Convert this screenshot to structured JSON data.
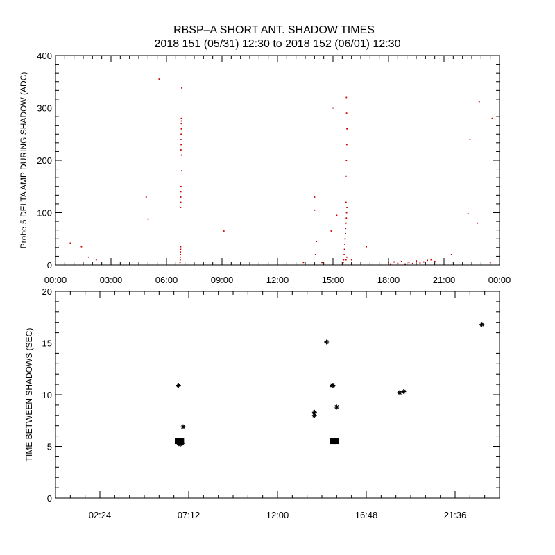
{
  "figure": {
    "title_line1": "RBSP–A SHORT ANT. SHADOW TIMES",
    "title_line2": "2018 151 (05/31) 12:30 to 2018 152 (06/01) 12:30"
  },
  "colors": {
    "red": "#cc0000",
    "black": "#000000"
  },
  "chart_data": [
    {
      "type": "scatter",
      "ylabel": "Probe 5 DELTA AMP DURING SHADOW (ADC)",
      "xlabel": "",
      "x_unit": "hours",
      "xlim": [
        0,
        24
      ],
      "ylim": [
        0,
        400
      ],
      "x_ticks": [
        0,
        3,
        6,
        9,
        12,
        15,
        18,
        21,
        24
      ],
      "x_tick_labels": [
        "00:00",
        "03:00",
        "06:00",
        "09:00",
        "12:00",
        "15:00",
        "18:00",
        "21:00",
        "00:00"
      ],
      "y_ticks": [
        0,
        100,
        200,
        300,
        400
      ],
      "y_tick_labels": [
        "0",
        "100",
        "200",
        "300",
        "400"
      ],
      "grid": false,
      "series": [
        {
          "marker": "dot",
          "color": "#cc0000",
          "x": [
            0.8,
            1.4,
            1.8,
            2.2,
            4.9,
            5.0,
            5.6,
            6.73,
            6.74,
            6.74,
            6.75,
            6.75,
            6.76,
            6.76,
            6.76,
            6.77,
            6.77,
            6.77,
            6.78,
            6.78,
            6.79,
            6.78,
            6.79,
            6.8,
            6.8,
            6.81,
            6.82,
            6.8,
            6.81,
            6.82,
            9.1,
            13.4,
            14.0,
            14.0,
            14.1,
            14.05,
            14.4,
            14.9,
            15.0,
            15.2,
            15.55,
            15.57,
            15.6,
            15.62,
            15.63,
            15.65,
            15.67,
            15.68,
            15.7,
            15.72,
            15.73,
            15.75,
            15.7,
            15.71,
            15.72,
            15.74,
            15.75,
            15.73,
            15.72,
            15.7,
            15.74,
            16.0,
            16.8,
            18.0,
            18.1,
            18.3,
            18.5,
            18.7,
            18.9,
            19.1,
            19.3,
            19.5,
            19.7,
            19.9,
            20.1,
            20.3,
            20.5,
            21.4,
            22.3,
            22.4,
            22.8,
            22.9,
            23.5,
            23.6
          ],
          "y": [
            42,
            35,
            15,
            10,
            130,
            88,
            355,
            5,
            10,
            15,
            20,
            25,
            30,
            35,
            110,
            120,
            130,
            140,
            150,
            220,
            230,
            240,
            250,
            260,
            270,
            275,
            338,
            280,
            210,
            180,
            65,
            5,
            130,
            105,
            45,
            20,
            5,
            65,
            300,
            95,
            5,
            10,
            20,
            30,
            40,
            50,
            60,
            70,
            80,
            90,
            100,
            110,
            120,
            170,
            200,
            230,
            260,
            290,
            320,
            10,
            15,
            10,
            35,
            5,
            2,
            6,
            3,
            7,
            2,
            5,
            3,
            8,
            4,
            6,
            9,
            10,
            7,
            20,
            98,
            240,
            80,
            312,
            5,
            280
          ]
        }
      ]
    },
    {
      "type": "scatter",
      "ylabel": "TIME BETWEEN SHADOWS (SEC)",
      "xlabel": "",
      "x_unit": "hours",
      "xlim": [
        0,
        24
      ],
      "ylim": [
        0,
        20
      ],
      "x_ticks": [
        2.4,
        7.2,
        12.0,
        16.8,
        21.6
      ],
      "x_tick_labels": [
        "02:24",
        "07:12",
        "12:00",
        "16:48",
        "21:36"
      ],
      "y_ticks": [
        0,
        5,
        10,
        15,
        20
      ],
      "y_tick_labels": [
        "0",
        "5",
        "10",
        "15",
        "20"
      ],
      "grid": false,
      "series": [
        {
          "marker": "asterisk",
          "color": "#000000",
          "x": [
            6.65,
            6.9,
            14.0,
            14.0,
            14.65,
            14.95,
            15.0,
            15.2,
            18.6,
            18.82,
            23.05
          ],
          "y": [
            10.9,
            6.9,
            8.0,
            8.3,
            15.1,
            10.9,
            10.9,
            8.8,
            10.2,
            10.3,
            16.8
          ]
        },
        {
          "marker": "square",
          "color": "#000000",
          "x": [
            6.6,
            6.7,
            6.8,
            15.0,
            15.15
          ],
          "y": [
            5.5,
            5.5,
            5.5,
            5.5,
            5.5
          ]
        },
        {
          "marker": "asterisk",
          "color": "#000000",
          "x": [
            6.65,
            6.75,
            6.85
          ],
          "y": [
            5.3,
            5.2,
            5.3
          ]
        }
      ]
    }
  ]
}
